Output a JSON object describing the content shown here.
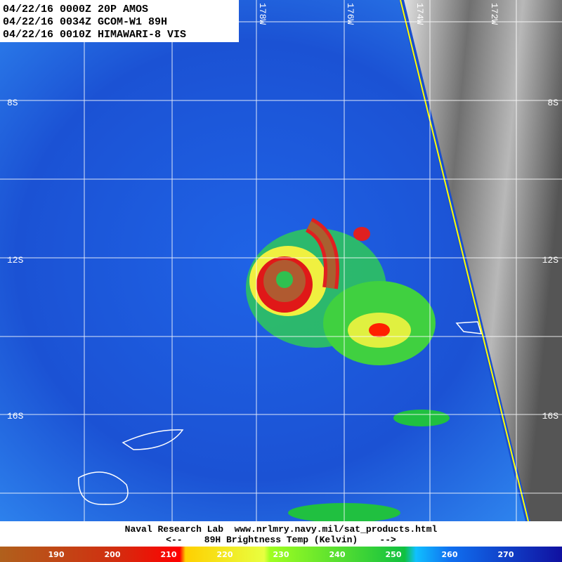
{
  "header": {
    "lines": [
      "04/22/16 0000Z 20P AMOS",
      "04/22/16 0034Z GCOM-W1 89H",
      "04/22/16 0010Z HIMAWARI-8 VIS"
    ]
  },
  "grid_labels": {
    "lon": [
      "178W",
      "176W",
      "174W",
      "172W"
    ],
    "lat_left": [
      "8S",
      "12S",
      "16S"
    ],
    "lat_right": [
      "8S",
      "12S",
      "16S"
    ]
  },
  "footer": {
    "credit": "Naval Research Lab  www.nrlmry.navy.mil/sat_products.html",
    "legend_title": "<--    89H Brightness Temp (Kelvin)    -->"
  },
  "colorbar": {
    "labels": [
      190,
      200,
      210,
      220,
      230,
      240,
      250,
      260,
      270
    ]
  }
}
